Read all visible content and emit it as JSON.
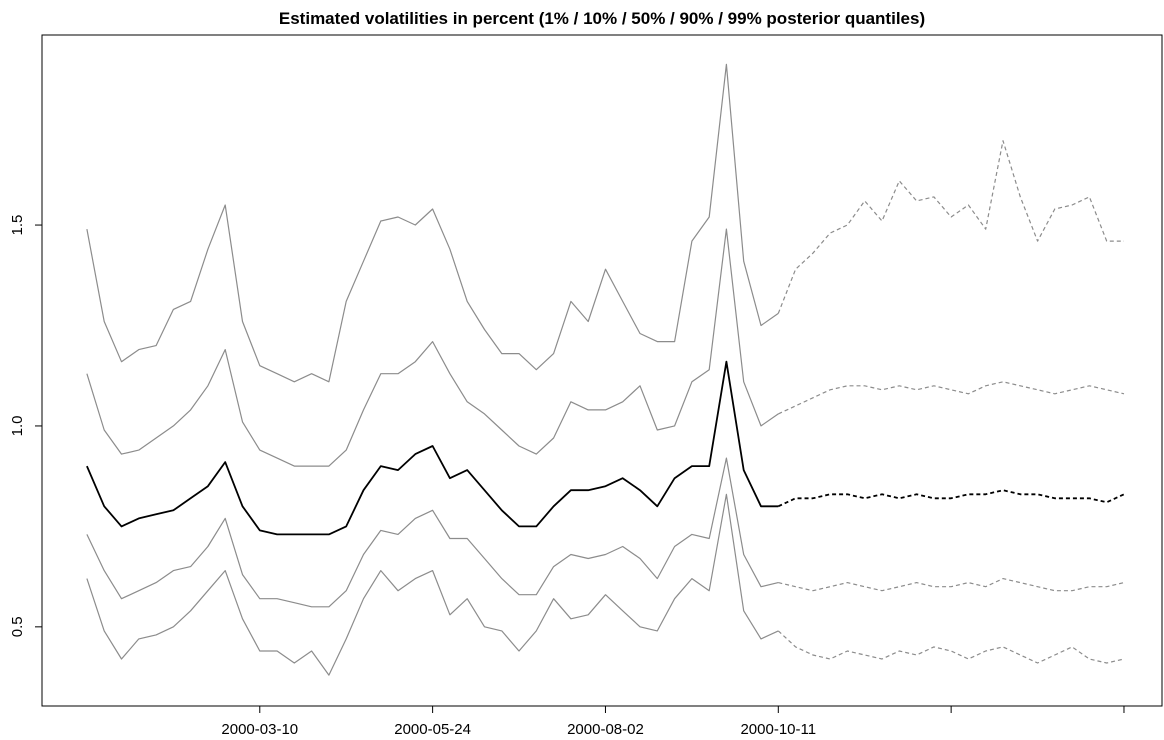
{
  "chart_data": {
    "type": "line",
    "title": "Estimated volatilities in percent (1% / 10% / 50% / 90% / 99% posterior quantiles)",
    "x": [
      0,
      5,
      10,
      15,
      20,
      25,
      30,
      35,
      40,
      45,
      50,
      55,
      60,
      65,
      70,
      75,
      80,
      85,
      90,
      95,
      100,
      105,
      110,
      115,
      120,
      125,
      130,
      135,
      140,
      145,
      150,
      155,
      160,
      165,
      170,
      175,
      180,
      185,
      190,
      195,
      200,
      205,
      210,
      215,
      220,
      225,
      230,
      235,
      240,
      245,
      250,
      255,
      260,
      265,
      270,
      275,
      280,
      285,
      290,
      295,
      300
    ],
    "xlim": [
      -13,
      311
    ],
    "xticks": [
      {
        "value": 50,
        "label": "2000-03-10"
      },
      {
        "value": 100,
        "label": "2000-05-24"
      },
      {
        "value": 150,
        "label": "2000-08-02"
      },
      {
        "value": 200,
        "label": "2000-10-11"
      },
      {
        "value": 250,
        "label": null
      },
      {
        "value": 300,
        "label": null
      }
    ],
    "ylim": [
      0.303,
      1.973
    ],
    "yticks": [
      0.5,
      {
        "value": 1,
        "label": "1.0"
      },
      1.5
    ],
    "grid": false,
    "series": [
      {
        "color": "#8c8c8c",
        "dash": false,
        "values": [
          0.62,
          0.49,
          0.42,
          0.47,
          0.48,
          0.5,
          0.54,
          0.59,
          0.64,
          0.52,
          0.44,
          0.44,
          0.41,
          0.44,
          0.38,
          0.47,
          0.57,
          0.64,
          0.59,
          0.62,
          0.64,
          0.53,
          0.57,
          0.5,
          0.49,
          0.44,
          0.49,
          0.57,
          0.52,
          0.53,
          0.58,
          0.54,
          0.5,
          0.49,
          0.57,
          0.62,
          0.59,
          0.83,
          0.54,
          0.47,
          0.49,
          null,
          null,
          null,
          null,
          null,
          null,
          null,
          null,
          null,
          null,
          null,
          null,
          null,
          null,
          null,
          null,
          null,
          null,
          null,
          null
        ]
      },
      {
        "color": "#8c8c8c",
        "dash": false,
        "values": [
          0.73,
          0.64,
          0.57,
          0.59,
          0.61,
          0.64,
          0.65,
          0.7,
          0.77,
          0.63,
          0.57,
          0.57,
          0.56,
          0.55,
          0.55,
          0.59,
          0.68,
          0.74,
          0.73,
          0.77,
          0.79,
          0.72,
          0.72,
          0.67,
          0.62,
          0.58,
          0.58,
          0.65,
          0.68,
          0.67,
          0.68,
          0.7,
          0.67,
          0.62,
          0.7,
          0.73,
          0.72,
          0.92,
          0.68,
          0.6,
          0.61,
          null,
          null,
          null,
          null,
          null,
          null,
          null,
          null,
          null,
          null,
          null,
          null,
          null,
          null,
          null,
          null,
          null,
          null,
          null,
          null
        ]
      },
      {
        "color": "#000000",
        "dash": false,
        "values": [
          0.9,
          0.8,
          0.75,
          0.77,
          0.78,
          0.79,
          0.82,
          0.85,
          0.91,
          0.8,
          0.74,
          0.73,
          0.73,
          0.73,
          0.73,
          0.75,
          0.84,
          0.9,
          0.89,
          0.93,
          0.95,
          0.87,
          0.89,
          0.84,
          0.79,
          0.75,
          0.75,
          0.8,
          0.84,
          0.84,
          0.85,
          0.87,
          0.84,
          0.8,
          0.87,
          0.9,
          0.9,
          1.16,
          0.89,
          0.8,
          0.8,
          null,
          null,
          null,
          null,
          null,
          null,
          null,
          null,
          null,
          null,
          null,
          null,
          null,
          null,
          null,
          null,
          null,
          null,
          null,
          null
        ]
      },
      {
        "color": "#8c8c8c",
        "dash": false,
        "values": [
          1.13,
          0.99,
          0.93,
          0.94,
          0.97,
          1.0,
          1.04,
          1.1,
          1.19,
          1.01,
          0.94,
          0.92,
          0.9,
          0.9,
          0.9,
          0.94,
          1.04,
          1.13,
          1.13,
          1.16,
          1.21,
          1.13,
          1.06,
          1.03,
          0.99,
          0.95,
          0.93,
          0.97,
          1.06,
          1.04,
          1.04,
          1.06,
          1.1,
          0.99,
          1.0,
          1.11,
          1.14,
          1.49,
          1.11,
          1.0,
          1.03,
          null,
          null,
          null,
          null,
          null,
          null,
          null,
          null,
          null,
          null,
          null,
          null,
          null,
          null,
          null,
          null,
          null,
          null,
          null,
          null
        ]
      },
      {
        "color": "#8c8c8c",
        "dash": false,
        "values": [
          1.49,
          1.26,
          1.16,
          1.19,
          1.2,
          1.29,
          1.31,
          1.44,
          1.55,
          1.26,
          1.15,
          1.13,
          1.11,
          1.13,
          1.11,
          1.31,
          1.41,
          1.51,
          1.52,
          1.5,
          1.54,
          1.44,
          1.31,
          1.24,
          1.18,
          1.18,
          1.14,
          1.18,
          1.31,
          1.26,
          1.39,
          1.31,
          1.23,
          1.21,
          1.21,
          1.46,
          1.52,
          1.9,
          1.41,
          1.25,
          1.28,
          null,
          null,
          null,
          null,
          null,
          null,
          null,
          null,
          null,
          null,
          null,
          null,
          null,
          null,
          null,
          null,
          null,
          null,
          null,
          null
        ]
      },
      {
        "color": "#8c8c8c",
        "dash": true,
        "values": [
          null,
          null,
          null,
          null,
          null,
          null,
          null,
          null,
          null,
          null,
          null,
          null,
          null,
          null,
          null,
          null,
          null,
          null,
          null,
          null,
          null,
          null,
          null,
          null,
          null,
          null,
          null,
          null,
          null,
          null,
          null,
          null,
          null,
          null,
          null,
          null,
          null,
          null,
          null,
          null,
          0.49,
          0.45,
          0.43,
          0.42,
          0.44,
          0.43,
          0.42,
          0.44,
          0.43,
          0.45,
          0.44,
          0.42,
          0.44,
          0.45,
          0.43,
          0.41,
          0.43,
          0.45,
          0.42,
          0.41,
          0.42
        ]
      },
      {
        "color": "#8c8c8c",
        "dash": true,
        "values": [
          null,
          null,
          null,
          null,
          null,
          null,
          null,
          null,
          null,
          null,
          null,
          null,
          null,
          null,
          null,
          null,
          null,
          null,
          null,
          null,
          null,
          null,
          null,
          null,
          null,
          null,
          null,
          null,
          null,
          null,
          null,
          null,
          null,
          null,
          null,
          null,
          null,
          null,
          null,
          null,
          0.61,
          0.6,
          0.59,
          0.6,
          0.61,
          0.6,
          0.59,
          0.6,
          0.61,
          0.6,
          0.6,
          0.61,
          0.6,
          0.62,
          0.61,
          0.6,
          0.59,
          0.59,
          0.6,
          0.6,
          0.61
        ]
      },
      {
        "color": "#000000",
        "dash": true,
        "values": [
          null,
          null,
          null,
          null,
          null,
          null,
          null,
          null,
          null,
          null,
          null,
          null,
          null,
          null,
          null,
          null,
          null,
          null,
          null,
          null,
          null,
          null,
          null,
          null,
          null,
          null,
          null,
          null,
          null,
          null,
          null,
          null,
          null,
          null,
          null,
          null,
          null,
          null,
          null,
          null,
          0.8,
          0.82,
          0.82,
          0.83,
          0.83,
          0.82,
          0.83,
          0.82,
          0.83,
          0.82,
          0.82,
          0.83,
          0.83,
          0.84,
          0.83,
          0.83,
          0.82,
          0.82,
          0.82,
          0.81,
          0.83
        ]
      },
      {
        "color": "#8c8c8c",
        "dash": true,
        "values": [
          null,
          null,
          null,
          null,
          null,
          null,
          null,
          null,
          null,
          null,
          null,
          null,
          null,
          null,
          null,
          null,
          null,
          null,
          null,
          null,
          null,
          null,
          null,
          null,
          null,
          null,
          null,
          null,
          null,
          null,
          null,
          null,
          null,
          null,
          null,
          null,
          null,
          null,
          null,
          null,
          1.03,
          1.05,
          1.07,
          1.09,
          1.1,
          1.1,
          1.09,
          1.1,
          1.09,
          1.1,
          1.09,
          1.08,
          1.1,
          1.11,
          1.1,
          1.09,
          1.08,
          1.09,
          1.1,
          1.09,
          1.08
        ]
      },
      {
        "color": "#8c8c8c",
        "dash": true,
        "values": [
          null,
          null,
          null,
          null,
          null,
          null,
          null,
          null,
          null,
          null,
          null,
          null,
          null,
          null,
          null,
          null,
          null,
          null,
          null,
          null,
          null,
          null,
          null,
          null,
          null,
          null,
          null,
          null,
          null,
          null,
          null,
          null,
          null,
          null,
          null,
          null,
          null,
          null,
          null,
          null,
          1.28,
          1.39,
          1.43,
          1.48,
          1.5,
          1.56,
          1.51,
          1.61,
          1.56,
          1.57,
          1.52,
          1.55,
          1.49,
          1.71,
          1.57,
          1.46,
          1.54,
          1.55,
          1.57,
          1.46,
          1.46
        ]
      }
    ]
  }
}
